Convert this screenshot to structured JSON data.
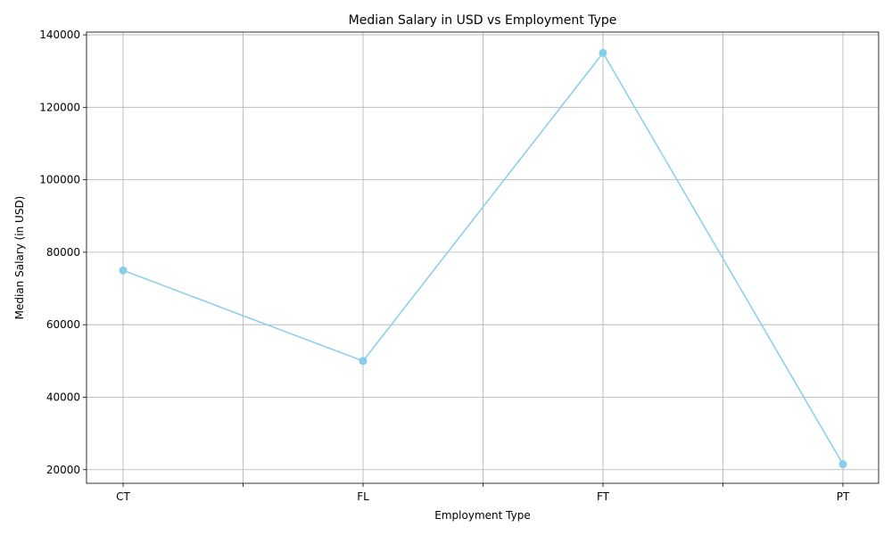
{
  "chart_data": {
    "type": "line",
    "title": "Median Salary in USD vs Employment Type",
    "xlabel": "Employment Type",
    "ylabel": "Median Salary (in USD)",
    "categories": [
      "CT",
      "FL",
      "FT",
      "PT"
    ],
    "series": [
      {
        "values": [
          75000,
          50000,
          135000,
          21500
        ],
        "color": "#87ceeb",
        "marker": "circle"
      }
    ],
    "ylim": [
      16250,
      140750
    ],
    "yticks": [
      20000,
      40000,
      60000,
      80000,
      100000,
      120000,
      140000
    ],
    "grid": true
  }
}
